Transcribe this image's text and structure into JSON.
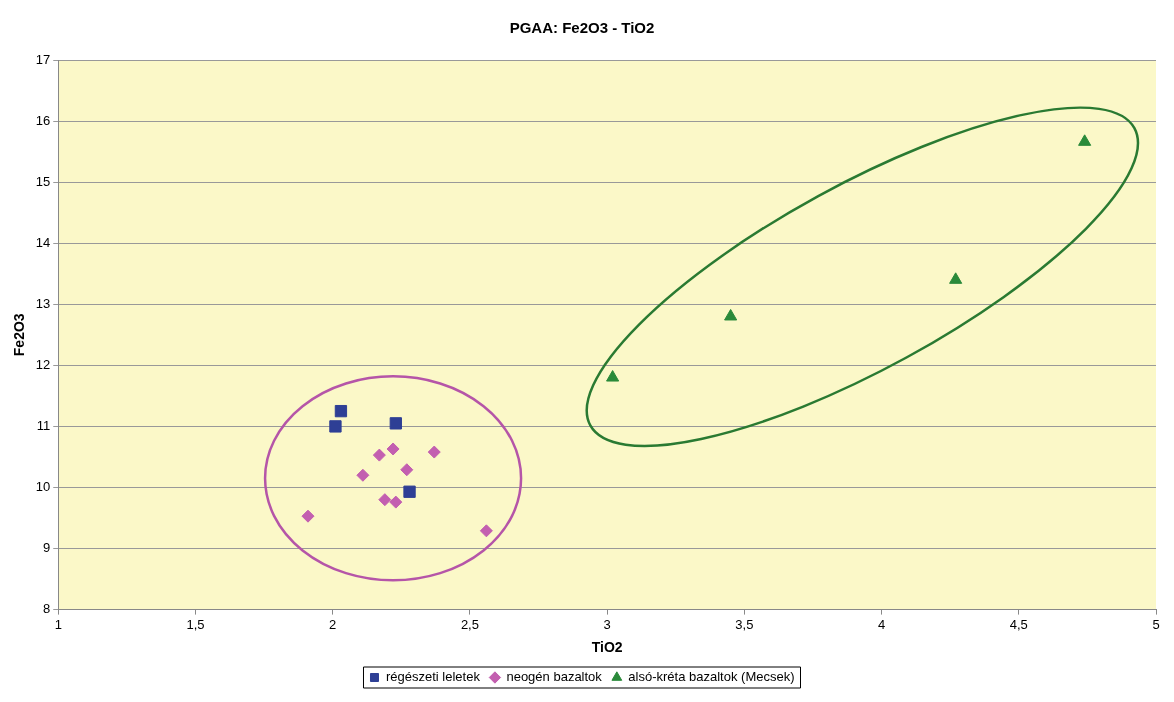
{
  "chart_data": {
    "type": "scatter",
    "title": "PGAA: Fe2O3 - TiO2",
    "xlabel": "TiO2",
    "ylabel": "Fe2O3",
    "xlim": [
      1,
      5
    ],
    "xticks": [
      1,
      {
        "value": 1.5,
        "label": "1,5"
      },
      2,
      {
        "value": 2.5,
        "label": "2,5"
      },
      3,
      {
        "value": 3.5,
        "label": "3,5"
      },
      4,
      {
        "value": 4.5,
        "label": "4,5"
      },
      5
    ],
    "ylim": [
      8,
      17
    ],
    "yticks": [
      8,
      9,
      10,
      11,
      12,
      13,
      14,
      15,
      16,
      17
    ],
    "grid": "y",
    "legend": "bottom",
    "series": [
      {
        "name": "régészeti leletek",
        "color": "#2e3f95",
        "marker": "square",
        "x": [
          2.01,
          2.03,
          2.23,
          2.28
        ],
        "values": [
          11.0,
          11.25,
          11.05,
          9.93
        ]
      },
      {
        "name": "neogén bazaltok",
        "color": "#c35fb0",
        "marker": "diamond",
        "x": [
          1.91,
          2.11,
          2.17,
          2.22,
          2.27,
          2.37,
          2.19,
          2.23,
          2.56
        ],
        "values": [
          9.53,
          10.2,
          10.53,
          10.63,
          10.29,
          10.58,
          9.8,
          9.76,
          9.29
        ]
      },
      {
        "name": "alsó-kréta bazaltok (Mecsek)",
        "color": "#2a8a3a",
        "marker": "triangle",
        "x": [
          3.02,
          3.45,
          4.27,
          4.74
        ],
        "values": [
          11.8,
          12.8,
          13.4,
          15.66
        ]
      }
    ]
  }
}
